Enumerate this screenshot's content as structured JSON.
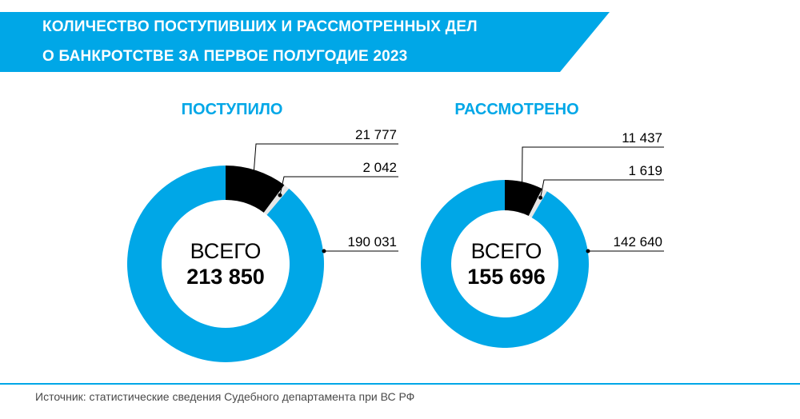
{
  "header": {
    "title_line1": "КОЛИЧЕСТВО ПОСТУПИВШИХ И РАССМОТРЕННЫХ ДЕЛ",
    "title_line2": "О БАНКРОТСТВЕ ЗА ПЕРВОЕ ПОЛУГОДИЕ 2023",
    "bg_color": "#00A7E7"
  },
  "colors": {
    "blue": "#00A7E7",
    "black": "#000000",
    "light_gray": "#E6E6E6"
  },
  "chart_data": [
    {
      "type": "pie",
      "subtype": "donut",
      "title": "ПОСТУПИЛО",
      "center_word": "ВСЕГО",
      "total": "213 850",
      "slices": [
        {
          "value": 21777,
          "label": "21 777",
          "color": "#000000"
        },
        {
          "value": 2042,
          "label": "2 042",
          "color": "#E6E6E6"
        },
        {
          "value": 190031,
          "label": "190 031",
          "color": "#00A7E7"
        }
      ]
    },
    {
      "type": "pie",
      "subtype": "donut",
      "title": "РАССМОТРЕНО",
      "center_word": "ВСЕГО",
      "total": "155 696",
      "slices": [
        {
          "value": 11437,
          "label": "11 437",
          "color": "#000000"
        },
        {
          "value": 1619,
          "label": "1 619",
          "color": "#E6E6E6"
        },
        {
          "value": 142640,
          "label": "142 640",
          "color": "#00A7E7"
        }
      ]
    }
  ],
  "footer": {
    "source": "Источник: статистические сведения Судебного департамента при ВС РФ"
  }
}
